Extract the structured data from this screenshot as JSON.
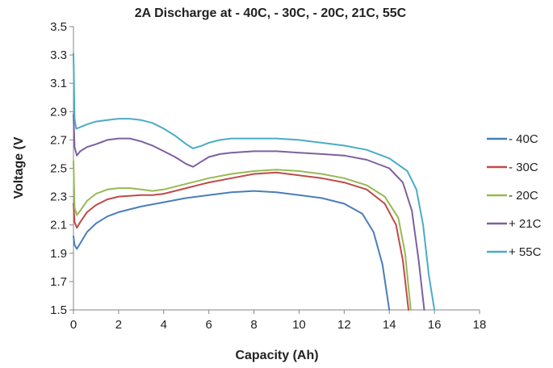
{
  "chart_data": {
    "type": "line",
    "title": "2A Discharge at - 40C, - 30C, - 20C, 21C, 55C",
    "xlabel": "Capacity (Ah)",
    "ylabel": "Voltage (V",
    "xlim": [
      0,
      18
    ],
    "ylim": [
      1.5,
      3.5
    ],
    "x_ticks": [
      0,
      2,
      4,
      6,
      8,
      10,
      12,
      14,
      16,
      18
    ],
    "x_tick_labels": [
      "0",
      "2",
      "4",
      "6",
      "8",
      "10",
      "12",
      "14",
      "16",
      "18"
    ],
    "y_ticks": [
      1.5,
      1.7,
      1.9,
      2.1,
      2.3,
      2.5,
      2.7,
      2.9,
      3.1,
      3.3,
      3.5
    ],
    "y_tick_labels": [
      "1.5",
      "1.7",
      "1.9",
      "2.1",
      "2.3",
      "2.5",
      "2.7",
      "2.9",
      "3.1",
      "3.3",
      "3.5"
    ],
    "grid": false,
    "legend_position": "right",
    "series": [
      {
        "name": "- 40C",
        "color": "#4A7EBB",
        "points": [
          [
            0,
            2.02
          ],
          [
            0.05,
            1.96
          ],
          [
            0.15,
            1.93
          ],
          [
            0.3,
            1.97
          ],
          [
            0.6,
            2.05
          ],
          [
            1.0,
            2.11
          ],
          [
            1.5,
            2.16
          ],
          [
            2.0,
            2.19
          ],
          [
            3.0,
            2.23
          ],
          [
            4.0,
            2.26
          ],
          [
            5.0,
            2.29
          ],
          [
            6.0,
            2.31
          ],
          [
            7.0,
            2.33
          ],
          [
            8.0,
            2.34
          ],
          [
            9.0,
            2.33
          ],
          [
            10.0,
            2.31
          ],
          [
            11.0,
            2.29
          ],
          [
            12.0,
            2.25
          ],
          [
            12.8,
            2.18
          ],
          [
            13.3,
            2.05
          ],
          [
            13.7,
            1.82
          ],
          [
            14.0,
            1.5
          ]
        ]
      },
      {
        "name": "- 30C",
        "color": "#BE4B48",
        "points": [
          [
            0,
            2.25
          ],
          [
            0.05,
            2.12
          ],
          [
            0.15,
            2.08
          ],
          [
            0.3,
            2.12
          ],
          [
            0.6,
            2.19
          ],
          [
            1.0,
            2.24
          ],
          [
            1.5,
            2.28
          ],
          [
            2.0,
            2.3
          ],
          [
            3.0,
            2.31
          ],
          [
            3.5,
            2.31
          ],
          [
            4.0,
            2.32
          ],
          [
            5.0,
            2.36
          ],
          [
            6.0,
            2.4
          ],
          [
            7.0,
            2.43
          ],
          [
            8.0,
            2.46
          ],
          [
            9.0,
            2.47
          ],
          [
            10.0,
            2.45
          ],
          [
            11.0,
            2.43
          ],
          [
            12.0,
            2.4
          ],
          [
            13.0,
            2.35
          ],
          [
            13.8,
            2.25
          ],
          [
            14.3,
            2.1
          ],
          [
            14.6,
            1.85
          ],
          [
            14.85,
            1.5
          ]
        ]
      },
      {
        "name": "- 20C",
        "color": "#98B954",
        "points": [
          [
            0,
            2.55
          ],
          [
            0.05,
            2.22
          ],
          [
            0.15,
            2.17
          ],
          [
            0.3,
            2.2
          ],
          [
            0.6,
            2.27
          ],
          [
            1.0,
            2.32
          ],
          [
            1.5,
            2.35
          ],
          [
            2.0,
            2.36
          ],
          [
            2.5,
            2.36
          ],
          [
            3.0,
            2.35
          ],
          [
            3.5,
            2.34
          ],
          [
            4.0,
            2.35
          ],
          [
            5.0,
            2.39
          ],
          [
            6.0,
            2.43
          ],
          [
            7.0,
            2.46
          ],
          [
            8.0,
            2.48
          ],
          [
            9.0,
            2.49
          ],
          [
            10.0,
            2.48
          ],
          [
            11.0,
            2.46
          ],
          [
            12.0,
            2.43
          ],
          [
            13.0,
            2.38
          ],
          [
            13.8,
            2.3
          ],
          [
            14.4,
            2.15
          ],
          [
            14.7,
            1.9
          ],
          [
            14.95,
            1.5
          ]
        ]
      },
      {
        "name": "+ 21C",
        "color": "#7D60A0",
        "points": [
          [
            0,
            2.88
          ],
          [
            0.05,
            2.65
          ],
          [
            0.15,
            2.59
          ],
          [
            0.3,
            2.62
          ],
          [
            0.6,
            2.65
          ],
          [
            1.0,
            2.67
          ],
          [
            1.5,
            2.7
          ],
          [
            2.0,
            2.71
          ],
          [
            2.5,
            2.71
          ],
          [
            3.0,
            2.69
          ],
          [
            3.5,
            2.66
          ],
          [
            4.0,
            2.62
          ],
          [
            4.5,
            2.58
          ],
          [
            5.0,
            2.53
          ],
          [
            5.3,
            2.51
          ],
          [
            5.7,
            2.55
          ],
          [
            6.0,
            2.58
          ],
          [
            6.5,
            2.6
          ],
          [
            7.0,
            2.61
          ],
          [
            8.0,
            2.62
          ],
          [
            9.0,
            2.62
          ],
          [
            10.0,
            2.61
          ],
          [
            11.0,
            2.6
          ],
          [
            12.0,
            2.59
          ],
          [
            13.0,
            2.56
          ],
          [
            14.0,
            2.5
          ],
          [
            14.6,
            2.4
          ],
          [
            15.0,
            2.2
          ],
          [
            15.3,
            1.85
          ],
          [
            15.55,
            1.5
          ]
        ]
      },
      {
        "name": "+ 55C",
        "color": "#4BACC6",
        "points": [
          [
            0,
            3.31
          ],
          [
            0.05,
            2.85
          ],
          [
            0.12,
            2.78
          ],
          [
            0.3,
            2.79
          ],
          [
            0.6,
            2.81
          ],
          [
            1.0,
            2.83
          ],
          [
            1.5,
            2.84
          ],
          [
            2.0,
            2.85
          ],
          [
            2.5,
            2.85
          ],
          [
            3.0,
            2.84
          ],
          [
            3.5,
            2.82
          ],
          [
            4.0,
            2.78
          ],
          [
            4.5,
            2.73
          ],
          [
            5.0,
            2.67
          ],
          [
            5.3,
            2.64
          ],
          [
            5.7,
            2.66
          ],
          [
            6.0,
            2.68
          ],
          [
            6.5,
            2.7
          ],
          [
            7.0,
            2.71
          ],
          [
            8.0,
            2.71
          ],
          [
            9.0,
            2.71
          ],
          [
            10.0,
            2.7
          ],
          [
            11.0,
            2.68
          ],
          [
            12.0,
            2.66
          ],
          [
            13.0,
            2.63
          ],
          [
            14.0,
            2.57
          ],
          [
            14.8,
            2.48
          ],
          [
            15.2,
            2.35
          ],
          [
            15.5,
            2.1
          ],
          [
            15.75,
            1.75
          ],
          [
            16.0,
            1.5
          ]
        ]
      }
    ]
  }
}
